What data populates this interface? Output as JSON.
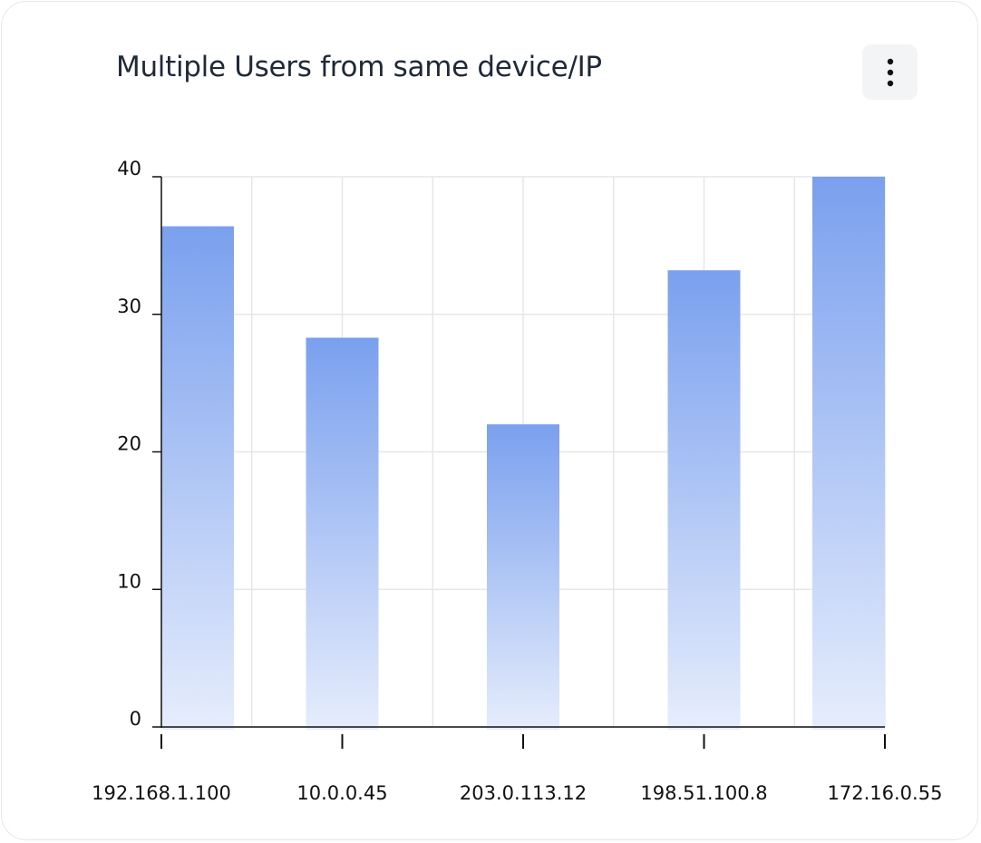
{
  "card": {
    "title": "Multiple Users from same device/IP",
    "menu_icon": "more-vertical-icon"
  },
  "chart_data": {
    "type": "bar",
    "title": "Multiple Users from same device/IP",
    "xlabel": "",
    "ylabel": "",
    "categories": [
      "192.168.1.100",
      "10.0.0.45",
      "203.0.113.12",
      "198.51.100.8",
      "172.16.0.55"
    ],
    "values": [
      36.4,
      28.3,
      22.0,
      33.2,
      40.0
    ],
    "ylim": [
      0,
      40
    ],
    "yticks": [
      "0",
      "10",
      "20",
      "30",
      "40"
    ],
    "grid": true,
    "legend": "none",
    "colors": {
      "bar_top": "#7aa0ee",
      "bar_bottom": "#e6edfc",
      "grid": "#e5e7eb",
      "axis": "#111111"
    }
  }
}
